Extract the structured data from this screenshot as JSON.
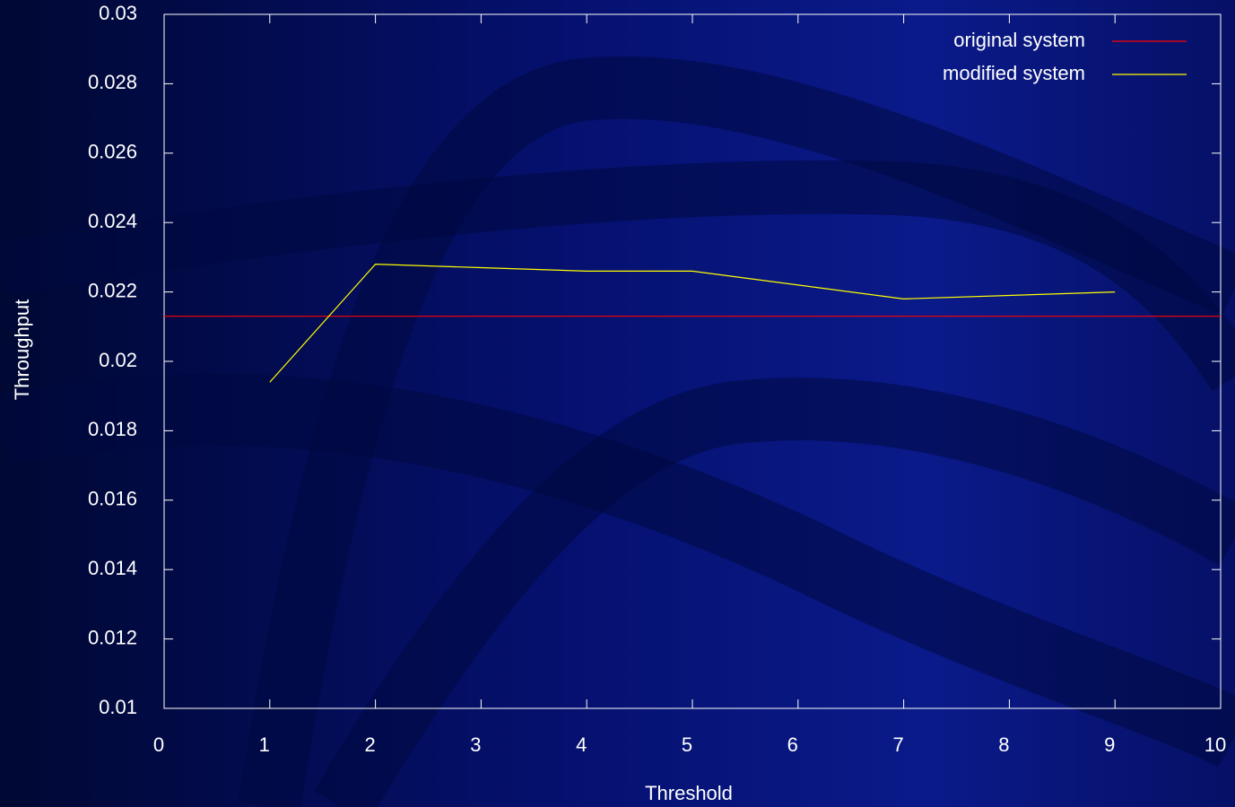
{
  "chart_data": {
    "type": "line",
    "xlabel": "Threshold",
    "ylabel": "Throughput",
    "xlim": [
      0,
      10
    ],
    "xticks": [
      0,
      1,
      2,
      3,
      4,
      5,
      6,
      7,
      8,
      9,
      10
    ],
    "ylim": [
      0.01,
      0.03
    ],
    "yticks": [
      0.01,
      0.012,
      0.014,
      0.016,
      0.018,
      0.02,
      0.022,
      0.024,
      0.026,
      0.028,
      0.03
    ],
    "legend": "top right",
    "series": [
      {
        "name": "original system",
        "color": "#ff0000",
        "x": [
          0,
          10
        ],
        "values": [
          0.0213,
          0.0213
        ]
      },
      {
        "name": "modified system",
        "color": "#ffff00",
        "x": [
          1,
          2,
          3,
          4,
          5,
          7,
          9
        ],
        "values": [
          0.0194,
          0.0228,
          0.0227,
          0.0226,
          0.0226,
          0.0218,
          0.022
        ]
      }
    ]
  }
}
